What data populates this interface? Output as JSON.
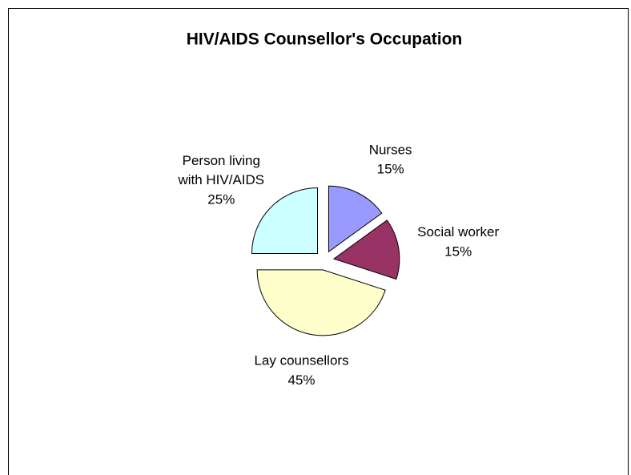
{
  "chart_data": {
    "type": "pie",
    "title": "HIV/AIDS Counsellor's Occupation",
    "categories": [
      "Nurses",
      "Social worker",
      "Lay counsellors",
      "Person living with HIV/AIDS"
    ],
    "values": [
      15,
      15,
      45,
      25
    ],
    "value_labels": [
      "15%",
      "15%",
      "45%",
      "25%"
    ],
    "colors": [
      "#9999ff",
      "#993366",
      "#ffffcc",
      "#ccffff"
    ],
    "exploded": true
  }
}
